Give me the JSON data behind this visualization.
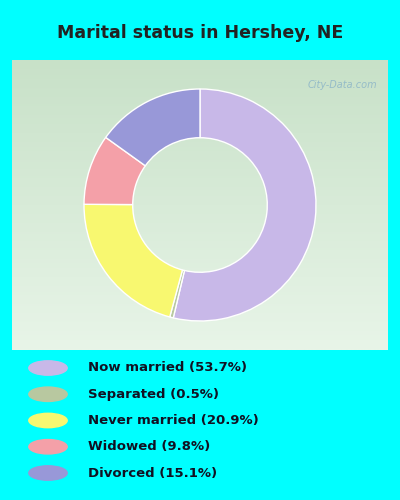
{
  "title": "Marital status in Hershey, NE",
  "slices": [
    {
      "label": "Now married (53.7%)",
      "value": 53.7,
      "color": "#c8b8e8"
    },
    {
      "label": "Separated (0.5%)",
      "value": 0.5,
      "color": "#b8c8a0"
    },
    {
      "label": "Never married (20.9%)",
      "value": 20.9,
      "color": "#f8f870"
    },
    {
      "label": "Widowed (9.8%)",
      "value": 9.8,
      "color": "#f4a0a8"
    },
    {
      "label": "Divorced (15.1%)",
      "value": 15.1,
      "color": "#9898d8"
    }
  ],
  "bg_cyan": "#00ffff",
  "bg_chart_top": "#e8f5e8",
  "bg_chart_bottom": "#c8e8c8",
  "title_color": "#222222",
  "legend_text_color": "#111122",
  "watermark": "City-Data.com",
  "watermark_color": "#90b8c8"
}
